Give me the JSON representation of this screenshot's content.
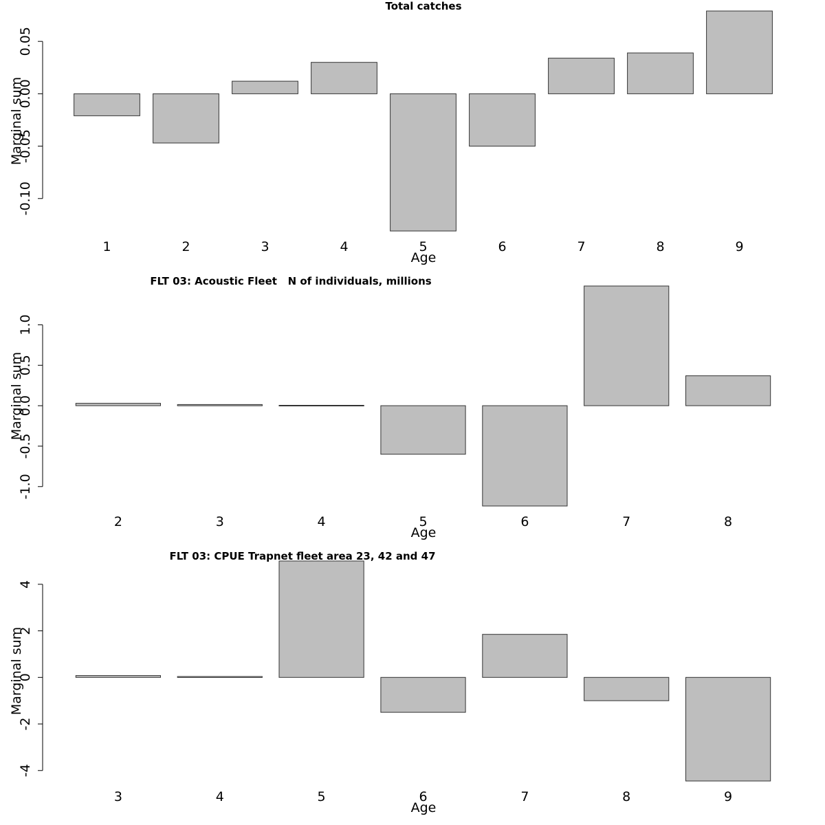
{
  "chart_data": [
    {
      "type": "bar",
      "title": "Total catches",
      "xlabel": "Age",
      "ylabel": "Marginal sum",
      "categories": [
        "1",
        "2",
        "3",
        "4",
        "5",
        "6",
        "7",
        "8",
        "9"
      ],
      "values": [
        -0.021,
        -0.047,
        0.012,
        0.03,
        -0.131,
        -0.05,
        0.034,
        0.039,
        0.079
      ],
      "ylim": [
        -0.131,
        0.079
      ],
      "yticks": [
        -0.1,
        -0.05,
        0.0,
        0.05
      ],
      "ytick_labels": [
        "-0.10",
        "-0.05",
        "0.00",
        "0.05"
      ],
      "bar_color": "#bebebe",
      "grid": false
    },
    {
      "type": "bar",
      "title": "FLT 03: Acoustic Fleet   N of individuals, millions",
      "xlabel": "Age",
      "ylabel": "Marginal sum",
      "categories": [
        "2",
        "3",
        "4",
        "5",
        "6",
        "7",
        "8"
      ],
      "values": [
        0.03,
        0.015,
        0.005,
        -0.6,
        -1.24,
        1.48,
        0.37
      ],
      "ylim": [
        -1.24,
        1.48
      ],
      "yticks": [
        -1.0,
        -0.5,
        0.0,
        0.5,
        1.0
      ],
      "ytick_labels": [
        "-1.0",
        "-0.5",
        "0.0",
        "0.5",
        "1.0"
      ],
      "bar_color": "#bebebe",
      "grid": false
    },
    {
      "type": "bar",
      "title": "FLT 03: CPUE Trapnet fleet area 23, 42 and 47",
      "xlabel": "Age",
      "ylabel": "Marginal sum",
      "categories": [
        "3",
        "4",
        "5",
        "6",
        "7",
        "8",
        "9"
      ],
      "values": [
        0.08,
        0.04,
        5.0,
        -1.5,
        1.85,
        -1.0,
        -4.45
      ],
      "ylim": [
        -4.45,
        5.0
      ],
      "yticks": [
        -4,
        -2,
        0,
        2,
        4
      ],
      "ytick_labels": [
        "-4",
        "-2",
        "0",
        "2",
        "4"
      ],
      "bar_color": "#bebebe",
      "grid": false
    }
  ]
}
